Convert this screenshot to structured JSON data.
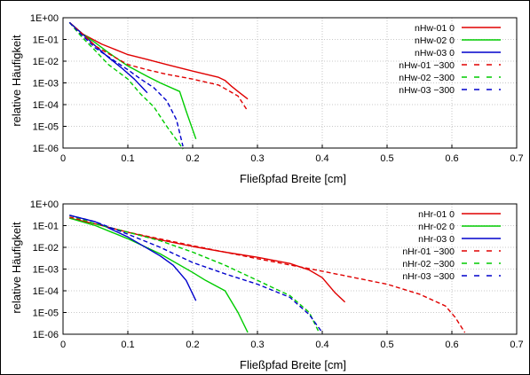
{
  "chart_data": [
    {
      "type": "line",
      "xlabel": "Fließpfad Breite [cm]",
      "ylabel": "relative Häufigkeit",
      "xlim": [
        0,
        0.7
      ],
      "ylim": [
        1e-06,
        1
      ],
      "y_scale": "log",
      "grid": true,
      "legend_position": "top-right",
      "x_ticks": [
        "0",
        "0.1",
        "0.2",
        "0.3",
        "0.4",
        "0.5",
        "0.6",
        "0.7"
      ],
      "y_ticks": [
        "1E-06",
        "1E-05",
        "1E-04",
        "1E-03",
        "1E-02",
        "1E-01",
        "1E+00"
      ],
      "series": [
        {
          "name": "nHw-01 0",
          "color": "#e00000",
          "dash": "solid",
          "x": [
            0.01,
            0.03,
            0.06,
            0.08,
            0.1,
            0.13,
            0.16,
            0.2,
            0.24,
            0.25,
            0.26,
            0.27,
            0.285
          ],
          "y": [
            0.6,
            0.18,
            0.06,
            0.035,
            0.02,
            0.012,
            0.007,
            0.0035,
            0.0018,
            0.0013,
            0.0007,
            0.0004,
            0.00018
          ]
        },
        {
          "name": "nHw-02 0",
          "color": "#00cc00",
          "dash": "solid",
          "x": [
            0.01,
            0.03,
            0.05,
            0.07,
            0.1,
            0.13,
            0.15,
            0.18,
            0.19,
            0.205
          ],
          "y": [
            0.6,
            0.18,
            0.07,
            0.025,
            0.006,
            0.002,
            0.001,
            0.0004,
            5e-05,
            2.6e-06
          ]
        },
        {
          "name": "nHw-03 0",
          "color": "#0000cc",
          "dash": "solid",
          "x": [
            0.01,
            0.03,
            0.05,
            0.07,
            0.09,
            0.11,
            0.125,
            0.13
          ],
          "y": [
            0.6,
            0.18,
            0.05,
            0.015,
            0.005,
            0.0015,
            0.0005,
            0.00035
          ]
        },
        {
          "name": "nHw-01 −300",
          "color": "#e00000",
          "dash": "dashed",
          "x": [
            0.01,
            0.03,
            0.05,
            0.08,
            0.1,
            0.13,
            0.16,
            0.2,
            0.24,
            0.27,
            0.285
          ],
          "y": [
            0.6,
            0.18,
            0.05,
            0.015,
            0.007,
            0.004,
            0.0025,
            0.0015,
            0.0008,
            0.00025,
            5e-05
          ]
        },
        {
          "name": "nHw-02 −300",
          "color": "#00cc00",
          "dash": "dashed",
          "x": [
            0.01,
            0.03,
            0.05,
            0.07,
            0.1,
            0.12,
            0.14,
            0.16,
            0.18,
            0.185
          ],
          "y": [
            0.6,
            0.12,
            0.03,
            0.007,
            0.0015,
            0.0003,
            8e-05,
            1e-05,
            1.5e-06,
            9e-07
          ]
        },
        {
          "name": "nHw-03 −300",
          "color": "#0000cc",
          "dash": "dashed",
          "x": [
            0.01,
            0.03,
            0.05,
            0.08,
            0.1,
            0.12,
            0.14,
            0.16,
            0.175,
            0.185
          ],
          "y": [
            0.6,
            0.15,
            0.04,
            0.01,
            0.004,
            0.0015,
            0.0006,
            0.00015,
            2e-05,
            1.2e-06
          ]
        }
      ]
    },
    {
      "type": "line",
      "xlabel": "Fließpfad Breite [cm]",
      "ylabel": "relative Häufigkeit",
      "xlim": [
        0,
        0.7
      ],
      "ylim": [
        1e-06,
        1
      ],
      "y_scale": "log",
      "grid": true,
      "legend_position": "top-right",
      "x_ticks": [
        "0",
        "0.1",
        "0.2",
        "0.3",
        "0.4",
        "0.5",
        "0.6",
        "0.7"
      ],
      "y_ticks": [
        "1E-06",
        "1E-05",
        "1E-04",
        "1E-03",
        "1E-02",
        "1E-01",
        "1E+00"
      ],
      "series": [
        {
          "name": "nHr-01 0",
          "color": "#e00000",
          "dash": "solid",
          "x": [
            0.01,
            0.05,
            0.1,
            0.15,
            0.2,
            0.25,
            0.3,
            0.35,
            0.38,
            0.4,
            0.42,
            0.435
          ],
          "y": [
            0.22,
            0.12,
            0.05,
            0.022,
            0.011,
            0.006,
            0.0035,
            0.0018,
            0.0009,
            0.0004,
            8e-05,
            3e-05
          ]
        },
        {
          "name": "nHr-02 0",
          "color": "#00cc00",
          "dash": "solid",
          "x": [
            0.01,
            0.05,
            0.1,
            0.15,
            0.2,
            0.22,
            0.25,
            0.27,
            0.285
          ],
          "y": [
            0.22,
            0.1,
            0.025,
            0.005,
            0.0007,
            0.0003,
            0.0001,
            1e-05,
            1.2e-06
          ]
        },
        {
          "name": "nHr-03 0",
          "color": "#0000cc",
          "dash": "solid",
          "x": [
            0.01,
            0.05,
            0.1,
            0.15,
            0.17,
            0.19,
            0.205
          ],
          "y": [
            0.3,
            0.15,
            0.03,
            0.004,
            0.0015,
            0.0003,
            3.5e-05
          ]
        },
        {
          "name": "nHr-01 −300",
          "color": "#e00000",
          "dash": "dashed",
          "x": [
            0.01,
            0.05,
            0.1,
            0.2,
            0.3,
            0.4,
            0.5,
            0.55,
            0.59,
            0.605,
            0.62
          ],
          "y": [
            0.25,
            0.12,
            0.05,
            0.012,
            0.003,
            0.0008,
            0.0002,
            7e-05,
            2e-05,
            6e-06,
            1.2e-06
          ]
        },
        {
          "name": "nHr-02 −300",
          "color": "#00cc00",
          "dash": "dashed",
          "x": [
            0.01,
            0.05,
            0.1,
            0.15,
            0.2,
            0.25,
            0.3,
            0.35,
            0.38,
            0.395
          ],
          "y": [
            0.3,
            0.12,
            0.05,
            0.02,
            0.006,
            0.0015,
            0.0003,
            6e-05,
            1e-05,
            1.2e-06
          ]
        },
        {
          "name": "nHr-03 −300",
          "color": "#0000cc",
          "dash": "dashed",
          "x": [
            0.01,
            0.05,
            0.1,
            0.15,
            0.2,
            0.25,
            0.3,
            0.35,
            0.38,
            0.4
          ],
          "y": [
            0.3,
            0.15,
            0.04,
            0.01,
            0.002,
            0.0006,
            0.0002,
            5e-05,
            8e-06,
            1.2e-06
          ]
        }
      ]
    }
  ]
}
